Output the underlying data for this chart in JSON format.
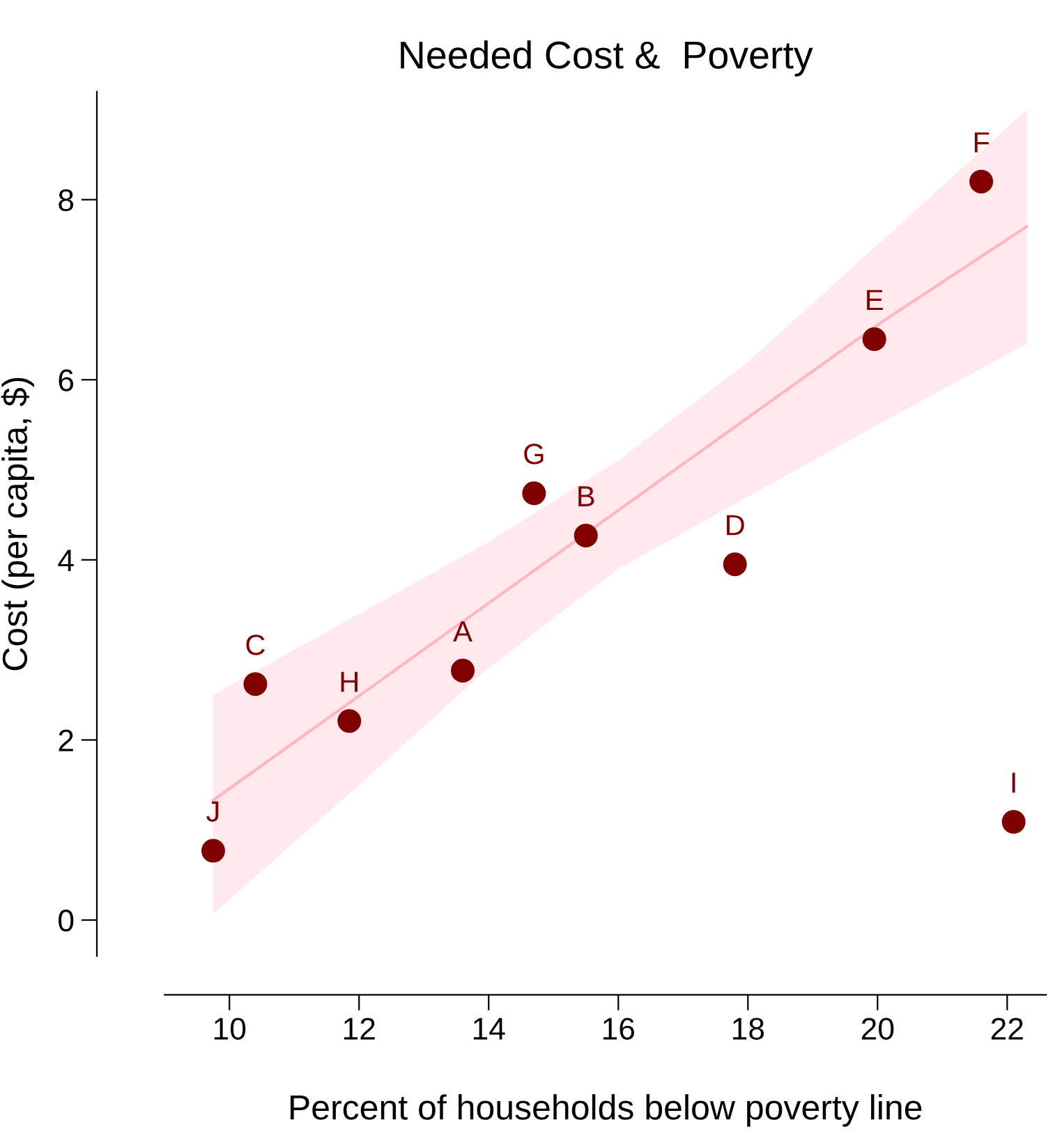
{
  "chart_data": {
    "type": "scatter",
    "title": "Needed Cost &  Poverty",
    "xlabel": "Percent of households below poverty line",
    "ylabel": "Cost (per capita, $)",
    "xlim": [
      9.0,
      22.6
    ],
    "ylim": [
      -0.4,
      9.2
    ],
    "xticks": [
      10,
      12,
      14,
      16,
      18,
      20,
      22
    ],
    "yticks": [
      0,
      2,
      4,
      6,
      8
    ],
    "grid": false,
    "legend": false,
    "series": [
      {
        "type": "line",
        "color": "#ffb6c1",
        "x": [
          9.75,
          12,
          14,
          16,
          18,
          20,
          22.3
        ],
        "values": [
          1.33,
          2.49,
          3.52,
          4.55,
          5.58,
          6.61,
          7.7
        ],
        "lower": [
          0.07,
          1.5,
          2.8,
          3.9,
          4.7,
          5.5,
          6.4
        ],
        "upper": [
          2.5,
          3.4,
          4.2,
          5.1,
          6.2,
          7.5,
          9.0
        ]
      },
      {
        "type": "scatter",
        "marker": "circle",
        "color": "#800000",
        "x": [
          13.6,
          15.5,
          10.4,
          17.8,
          19.95,
          21.6,
          14.7,
          11.85,
          22.1,
          9.75
        ],
        "values": [
          2.77,
          4.27,
          2.62,
          3.95,
          6.45,
          8.2,
          4.74,
          2.21,
          1.09,
          0.77
        ]
      }
    ],
    "annotations": [
      {
        "text": "A",
        "x": 13.6,
        "y": 2.77
      },
      {
        "text": "B",
        "x": 15.5,
        "y": 4.27
      },
      {
        "text": "C",
        "x": 10.4,
        "y": 2.62
      },
      {
        "text": "D",
        "x": 17.8,
        "y": 3.95
      },
      {
        "text": "E",
        "x": 19.95,
        "y": 6.45
      },
      {
        "text": "F",
        "x": 21.6,
        "y": 8.2
      },
      {
        "text": "G",
        "x": 14.7,
        "y": 4.74
      },
      {
        "text": "H",
        "x": 11.85,
        "y": 2.21
      },
      {
        "text": "I",
        "x": 22.1,
        "y": 1.09
      },
      {
        "text": "J",
        "x": 9.75,
        "y": 0.77
      }
    ]
  }
}
